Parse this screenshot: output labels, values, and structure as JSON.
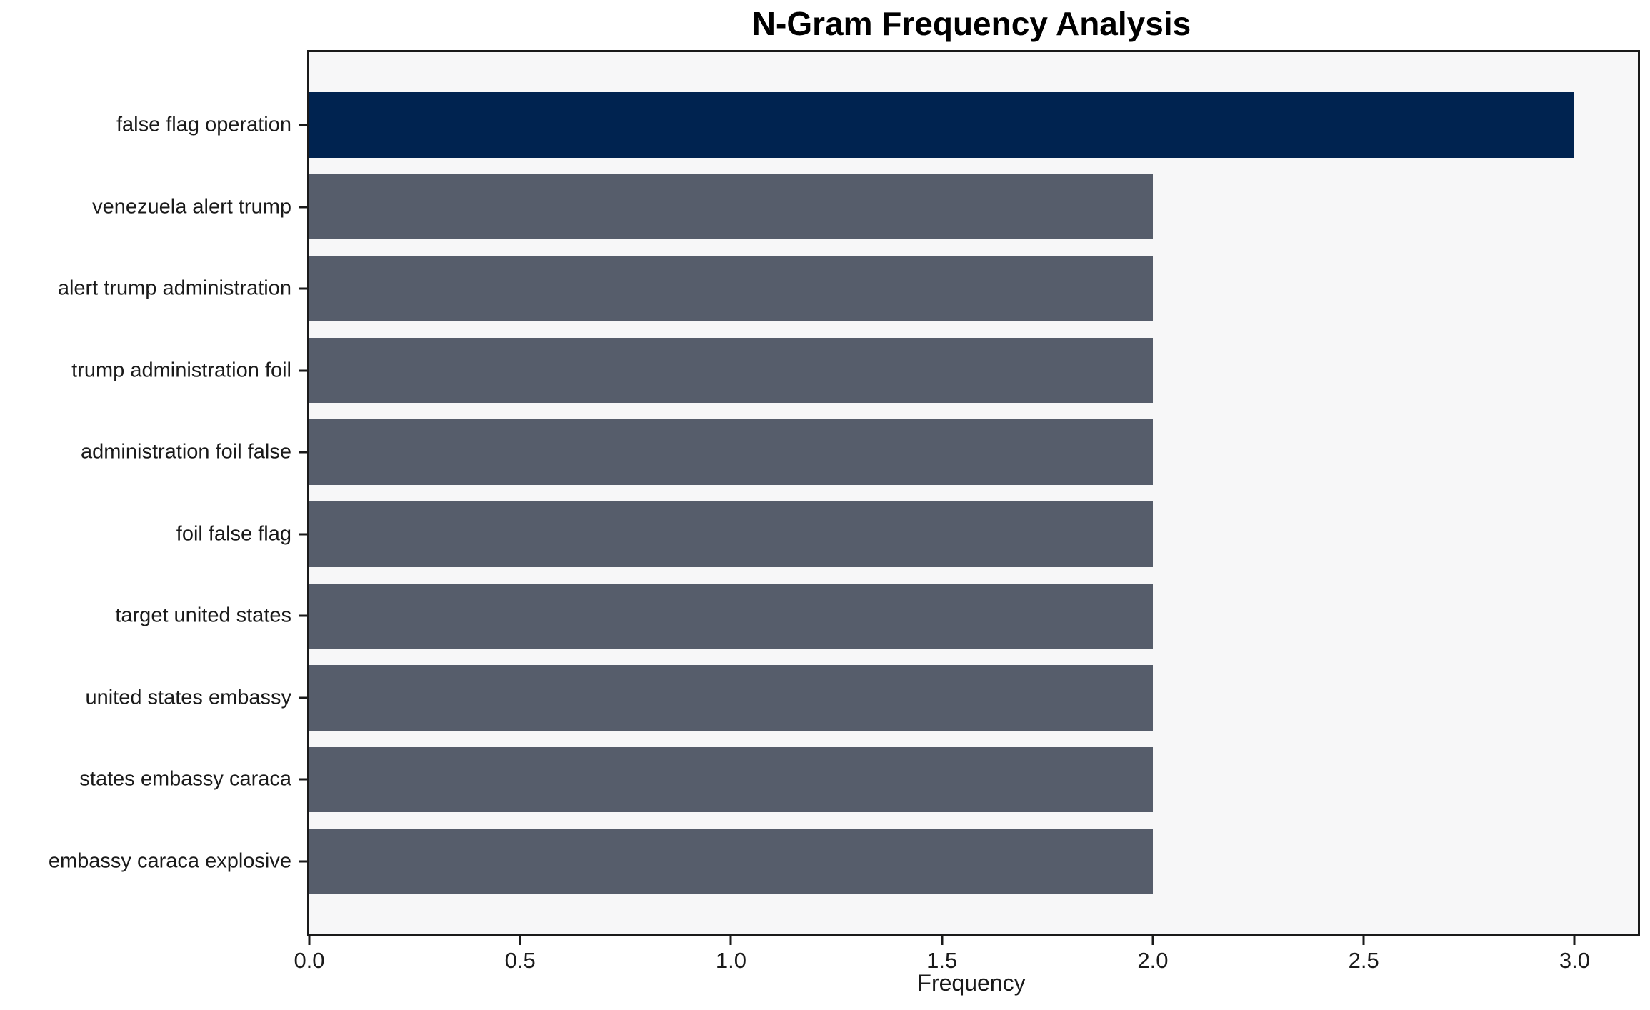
{
  "chart_data": {
    "type": "bar",
    "orientation": "horizontal",
    "title": "N-Gram Frequency Analysis",
    "xlabel": "Frequency",
    "ylabel": "",
    "categories": [
      "false flag operation",
      "venezuela alert trump",
      "alert trump administration",
      "trump administration foil",
      "administration foil false",
      "foil false flag",
      "target united states",
      "united states embassy",
      "states embassy caraca",
      "embassy caraca explosive"
    ],
    "values": [
      3,
      2,
      2,
      2,
      2,
      2,
      2,
      2,
      2,
      2
    ],
    "bar_colors": [
      "#002350",
      "#565d6b",
      "#565d6b",
      "#565d6b",
      "#565d6b",
      "#565d6b",
      "#565d6b",
      "#565d6b",
      "#565d6b",
      "#565d6b"
    ],
    "xlim": [
      0,
      3.15
    ],
    "xticks": [
      0.0,
      0.5,
      1.0,
      1.5,
      2.0,
      2.5,
      3.0
    ],
    "xtick_labels": [
      "0.0",
      "0.5",
      "1.0",
      "1.5",
      "2.0",
      "2.5",
      "3.0"
    ],
    "grid": false,
    "legend": null,
    "plot_background": "#f7f7f8",
    "colors": {
      "highlight": "#002350",
      "default": "#565d6b",
      "text": "#1a1a1a",
      "spine": "#1a1a1a"
    }
  }
}
